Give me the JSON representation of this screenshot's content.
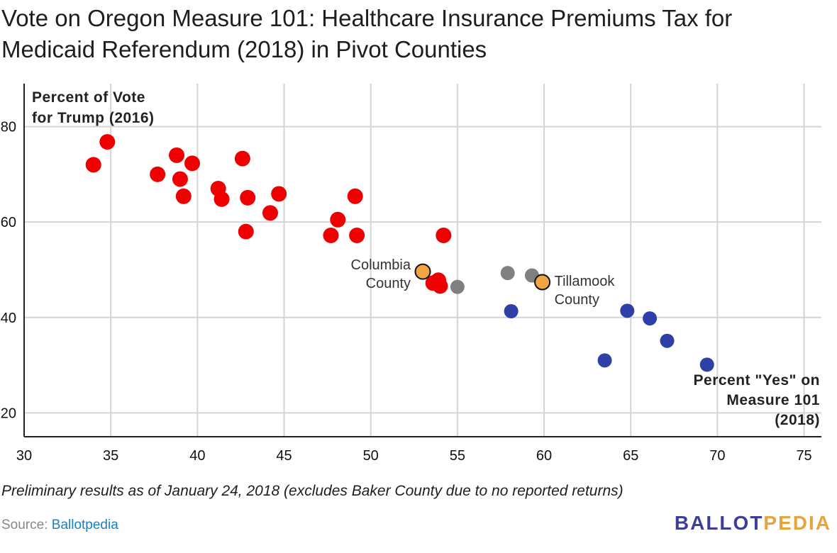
{
  "title": "Vote on Oregon Measure 101: Healthcare Insurance Premiums Tax for Medicaid Referendum (2018) in Pivot Counties",
  "footnote": "Preliminary results as of January 24, 2018 (excludes Baker County due to no reported returns)",
  "source": {
    "label": "Source:",
    "link_text": "Ballotpedia"
  },
  "brand": {
    "part1": "BALLOT",
    "part2": "PEDIA"
  },
  "chart_data": {
    "type": "scatter",
    "title": "Vote on Oregon Measure 101: Healthcare Insurance Premiums Tax for Medicaid Referendum (2018) in Pivot Counties",
    "xlabel_lines": [
      "Percent \"Yes\" on",
      "Measure 101",
      "(2018)"
    ],
    "ylabel_lines": [
      "Percent of Vote",
      "for Trump (2016)"
    ],
    "xlim": [
      30,
      76
    ],
    "ylim": [
      15,
      89
    ],
    "xticks": [
      30,
      35,
      40,
      45,
      50,
      55,
      60,
      65,
      70,
      75
    ],
    "yticks": [
      20,
      40,
      60,
      80
    ],
    "ytick_labels": [
      "20",
      "40",
      "60",
      "80"
    ],
    "grid": true,
    "colors": {
      "red": "#ee0000",
      "gray": "#808080",
      "blue": "#2f3fa8",
      "orange": "#f0a443",
      "grid": "#d4d4d4",
      "axis": "#222222"
    },
    "points": [
      {
        "x": 34.0,
        "y": 72.0,
        "group": "red"
      },
      {
        "x": 34.8,
        "y": 76.8,
        "group": "red"
      },
      {
        "x": 37.7,
        "y": 70.0,
        "group": "red"
      },
      {
        "x": 38.8,
        "y": 74.0,
        "group": "red"
      },
      {
        "x": 39.0,
        "y": 69.0,
        "group": "red"
      },
      {
        "x": 39.2,
        "y": 65.4,
        "group": "red"
      },
      {
        "x": 39.7,
        "y": 72.3,
        "group": "red"
      },
      {
        "x": 41.2,
        "y": 67.0,
        "group": "red"
      },
      {
        "x": 41.4,
        "y": 64.8,
        "group": "red"
      },
      {
        "x": 42.6,
        "y": 73.3,
        "group": "red"
      },
      {
        "x": 42.9,
        "y": 65.1,
        "group": "red"
      },
      {
        "x": 42.8,
        "y": 58.0,
        "group": "red"
      },
      {
        "x": 44.2,
        "y": 61.9,
        "group": "red"
      },
      {
        "x": 44.7,
        "y": 65.9,
        "group": "red"
      },
      {
        "x": 47.7,
        "y": 57.2,
        "group": "red"
      },
      {
        "x": 48.1,
        "y": 60.5,
        "group": "red"
      },
      {
        "x": 49.1,
        "y": 65.4,
        "group": "red"
      },
      {
        "x": 49.2,
        "y": 57.2,
        "group": "red"
      },
      {
        "x": 54.2,
        "y": 57.2,
        "group": "red"
      },
      {
        "x": 53.6,
        "y": 47.2,
        "group": "red"
      },
      {
        "x": 53.9,
        "y": 47.8,
        "group": "red"
      },
      {
        "x": 54.0,
        "y": 46.6,
        "group": "red"
      },
      {
        "x": 55.0,
        "y": 46.4,
        "group": "gray"
      },
      {
        "x": 57.9,
        "y": 49.3,
        "group": "gray"
      },
      {
        "x": 59.3,
        "y": 48.8,
        "group": "gray"
      },
      {
        "x": 53.0,
        "y": 49.6,
        "group": "orange",
        "label_lines": [
          "Columbia",
          "County"
        ]
      },
      {
        "x": 59.9,
        "y": 47.4,
        "group": "orange",
        "label_lines": [
          "Tillamook",
          "County"
        ]
      },
      {
        "x": 58.1,
        "y": 41.3,
        "group": "blue"
      },
      {
        "x": 63.5,
        "y": 31.0,
        "group": "blue"
      },
      {
        "x": 64.8,
        "y": 41.4,
        "group": "blue"
      },
      {
        "x": 66.1,
        "y": 39.8,
        "group": "blue"
      },
      {
        "x": 67.1,
        "y": 35.1,
        "group": "blue"
      },
      {
        "x": 69.4,
        "y": 30.1,
        "group": "blue"
      }
    ]
  }
}
